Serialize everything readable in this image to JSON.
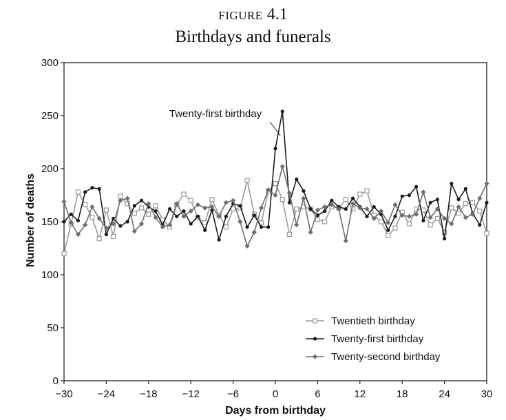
{
  "figure": {
    "number_prefix": "FIGURE",
    "number": "4.1",
    "title": "Birthdays and funerals"
  },
  "chart_data": {
    "type": "line",
    "title": "Birthdays and funerals",
    "xlabel": "Days from birthday",
    "ylabel": "Number of deaths",
    "xlim": [
      -30,
      30
    ],
    "ylim": [
      0,
      300
    ],
    "xticks": [
      -30,
      -24,
      -18,
      -12,
      -6,
      0,
      6,
      12,
      18,
      24,
      30
    ],
    "xtick_labels": [
      "−30",
      "−24",
      "−18",
      "−12",
      "−6",
      "0",
      "6",
      "12",
      "18",
      "24",
      "30"
    ],
    "yticks": [
      0,
      50,
      100,
      150,
      200,
      250,
      300
    ],
    "grid": false,
    "legend_position": "bottom-right",
    "x": [
      -30,
      -29,
      -28,
      -27,
      -26,
      -25,
      -24,
      -23,
      -22,
      -21,
      -20,
      -19,
      -18,
      -17,
      -16,
      -15,
      -14,
      -13,
      -12,
      -11,
      -10,
      -9,
      -8,
      -7,
      -6,
      -5,
      -4,
      -3,
      -2,
      -1,
      0,
      1,
      2,
      3,
      4,
      5,
      6,
      7,
      8,
      9,
      10,
      11,
      12,
      13,
      14,
      15,
      16,
      17,
      18,
      19,
      20,
      21,
      22,
      23,
      24,
      25,
      26,
      27,
      28,
      29,
      30
    ],
    "series": [
      {
        "name": "Twentieth birthday",
        "color": "#9a9a9a",
        "marker": "square-open",
        "values": [
          120,
          148,
          178,
          166,
          154,
          134,
          161,
          136,
          174,
          167,
          158,
          163,
          157,
          165,
          152,
          145,
          166,
          176,
          170,
          154,
          149,
          171,
          156,
          145,
          162,
          163,
          189,
          157,
          149,
          179,
          186,
          171,
          138,
          162,
          164,
          162,
          152,
          150,
          164,
          163,
          171,
          162,
          176,
          179,
          156,
          150,
          137,
          144,
          159,
          148,
          162,
          161,
          147,
          153,
          140,
          163,
          158,
          167,
          168,
          160,
          139
        ]
      },
      {
        "name": "Twenty-first birthday",
        "color": "#1a1a1a",
        "marker": "dot",
        "values": [
          150,
          157,
          151,
          178,
          182,
          181,
          138,
          153,
          146,
          150,
          165,
          170,
          164,
          160,
          147,
          162,
          155,
          160,
          148,
          155,
          142,
          161,
          133,
          155,
          167,
          165,
          145,
          156,
          145,
          145,
          219,
          254,
          168,
          190,
          179,
          162,
          156,
          160,
          170,
          164,
          162,
          172,
          164,
          155,
          164,
          157,
          142,
          155,
          174,
          175,
          183,
          151,
          168,
          171,
          134,
          186,
          171,
          181,
          158,
          147,
          168
        ]
      },
      {
        "name": "Twenty-second birthday",
        "color": "#6e6e6e",
        "marker": "diamond",
        "values": [
          169,
          149,
          138,
          147,
          164,
          153,
          144,
          148,
          170,
          172,
          141,
          148,
          167,
          154,
          145,
          147,
          167,
          155,
          160,
          166,
          163,
          164,
          155,
          168,
          170,
          150,
          127,
          140,
          163,
          180,
          175,
          202,
          177,
          147,
          172,
          140,
          161,
          164,
          166,
          162,
          132,
          167,
          163,
          162,
          153,
          160,
          149,
          166,
          156,
          155,
          157,
          178,
          154,
          162,
          153,
          148,
          164,
          154,
          157,
          172,
          186
        ]
      }
    ],
    "annotations": [
      {
        "text": "Twenty-first birthday",
        "x": 1,
        "y": 254
      }
    ]
  }
}
